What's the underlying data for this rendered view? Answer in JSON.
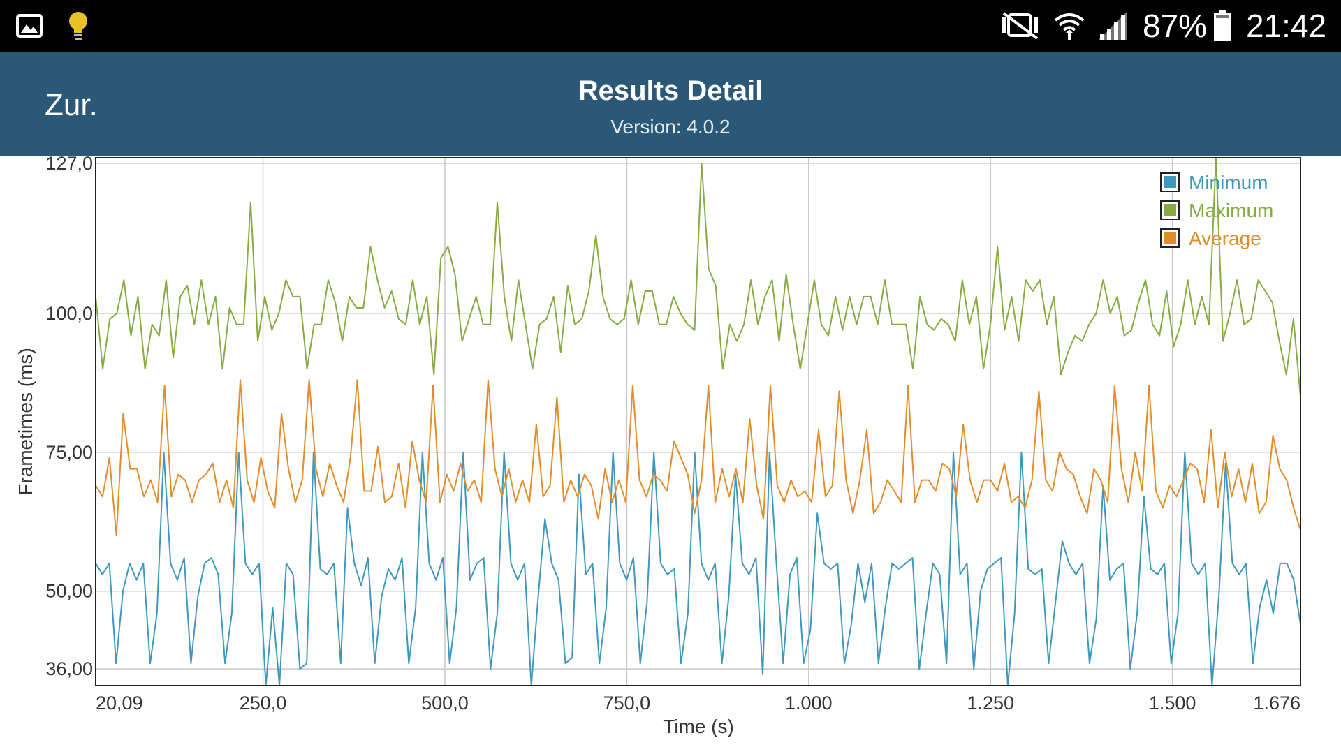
{
  "status_bar": {
    "left_icons": [
      "gallery-icon",
      "lightbulb-icon"
    ],
    "right_icons": [
      "mute-icon",
      "wifi-icon",
      "signal-icon",
      "battery-icon"
    ],
    "battery_percent": "87%",
    "time": "21:42"
  },
  "app_bar": {
    "back_label": "Zur.",
    "title": "Results Detail",
    "subtitle": "Version: 4.0.2",
    "color": "#2b5877"
  },
  "chart_data": {
    "type": "line",
    "xlabel": "Time (s)",
    "ylabel": "Frametimes (ms)",
    "xlim": [
      20.09,
      1676
    ],
    "ylim": [
      33,
      128
    ],
    "x_tick_values": [
      20.09,
      250,
      500,
      750,
      1000,
      1250,
      1500,
      1676
    ],
    "x_tick_labels": [
      "20,09",
      "250,0",
      "500,0",
      "750,0",
      "1.000",
      "1.250",
      "1.500",
      "1.676"
    ],
    "y_tick_values": [
      36,
      50,
      75,
      100,
      127
    ],
    "y_tick_labels": [
      "36,00",
      "50,00",
      "75,00",
      "100,0",
      "127,0"
    ],
    "grid": true,
    "legend_position": "top-right",
    "series": [
      {
        "name": "Minimum",
        "color": "#3e98bd",
        "values": [
          55,
          53,
          55,
          37,
          50,
          55,
          52,
          55,
          37,
          46,
          75,
          55,
          52,
          56,
          37,
          49,
          55,
          56,
          53,
          37,
          46,
          75,
          55,
          53,
          55,
          33,
          47,
          33,
          55,
          53,
          36,
          37,
          75,
          54,
          53,
          55,
          37,
          65,
          55,
          51,
          56,
          37,
          49,
          54,
          52,
          56,
          37,
          47,
          75,
          55,
          52,
          56,
          37,
          47,
          75,
          52,
          55,
          56,
          36,
          46,
          75,
          55,
          52,
          55,
          33,
          49,
          63,
          55,
          52,
          37,
          38,
          71,
          53,
          55,
          37,
          47,
          75,
          55,
          52,
          56,
          37,
          48,
          75,
          55,
          53,
          54,
          37,
          46,
          75,
          55,
          52,
          55,
          37,
          49,
          71,
          55,
          53,
          56,
          35,
          75,
          55,
          37,
          53,
          56,
          37,
          43,
          64,
          55,
          54,
          55,
          37,
          44,
          55,
          48,
          55,
          37,
          47,
          55,
          54,
          55,
          56,
          36,
          46,
          55,
          53,
          37,
          75,
          53,
          55,
          36,
          50,
          54,
          55,
          56,
          33,
          46,
          75,
          54,
          53,
          54,
          37,
          48,
          59,
          55,
          53,
          55,
          37,
          45,
          69,
          52,
          54,
          55,
          36,
          46,
          67,
          54,
          53,
          55,
          37,
          46,
          75,
          55,
          53,
          55,
          33,
          49,
          73,
          55,
          53,
          55,
          37,
          47,
          52,
          46,
          55,
          55,
          52,
          44
        ]
      },
      {
        "name": "Maximum",
        "color": "#86ac41",
        "values": [
          103,
          90,
          99,
          100,
          106,
          96,
          103,
          90,
          98,
          96,
          106,
          92,
          103,
          105,
          98,
          106,
          98,
          103,
          90,
          101,
          98,
          98,
          120,
          95,
          103,
          97,
          100,
          106,
          103,
          103,
          90,
          98,
          98,
          106,
          102,
          95,
          103,
          101,
          101,
          112,
          106,
          101,
          104,
          99,
          98,
          106,
          98,
          103,
          89,
          110,
          112,
          107,
          95,
          99,
          103,
          98,
          98,
          120,
          103,
          95,
          106,
          98,
          90,
          98,
          99,
          103,
          93,
          105,
          98,
          99,
          104,
          114,
          103,
          99,
          98,
          99,
          106,
          98,
          104,
          104,
          98,
          98,
          103,
          100,
          98,
          97,
          127,
          108,
          105,
          90,
          98,
          95,
          98,
          106,
          98,
          103,
          106,
          95,
          107,
          98,
          90,
          98,
          106,
          98,
          96,
          103,
          97,
          103,
          98,
          103,
          103,
          98,
          106,
          98,
          98,
          98,
          90,
          103,
          98,
          97,
          99,
          98,
          95,
          106,
          98,
          103,
          90,
          98,
          112,
          97,
          103,
          95,
          106,
          104,
          106,
          98,
          103,
          89,
          93,
          96,
          95,
          98,
          100,
          106,
          100,
          103,
          96,
          97,
          102,
          106,
          98,
          96,
          104,
          94,
          98,
          106,
          98,
          103,
          98,
          128,
          95,
          100,
          106,
          98,
          99,
          106,
          104,
          102,
          95,
          89,
          99,
          85
        ]
      },
      {
        "name": "Average",
        "color": "#e28c2a",
        "values": [
          69,
          67,
          74,
          60,
          82,
          72,
          72,
          67,
          70,
          66,
          87,
          67,
          71,
          70,
          66,
          70,
          71,
          73,
          66,
          70,
          65,
          88,
          70,
          66,
          74,
          68,
          65,
          82,
          72,
          66,
          70,
          88,
          72,
          67,
          73,
          69,
          66,
          74,
          88,
          68,
          68,
          76,
          66,
          67,
          73,
          65,
          77,
          70,
          66,
          87,
          66,
          71,
          68,
          73,
          68,
          70,
          66,
          88,
          72,
          67,
          72,
          66,
          70,
          66,
          80,
          67,
          69,
          85,
          66,
          70,
          67,
          71,
          69,
          63,
          72,
          66,
          70,
          66,
          87,
          70,
          67,
          71,
          70,
          68,
          77,
          74,
          71,
          64,
          70,
          87,
          66,
          72,
          67,
          72,
          66,
          81,
          69,
          63,
          87,
          69,
          66,
          70,
          67,
          68,
          66,
          79,
          67,
          69,
          86,
          70,
          64,
          70,
          79,
          64,
          66,
          70,
          68,
          66,
          87,
          66,
          70,
          70,
          68,
          73,
          72,
          67,
          80,
          70,
          66,
          70,
          70,
          68,
          73,
          66,
          67,
          65,
          70,
          86,
          70,
          68,
          75,
          72,
          71,
          67,
          64,
          72,
          70,
          66,
          87,
          72,
          66,
          75,
          68,
          87,
          68,
          65,
          69,
          67,
          70,
          73,
          72,
          66,
          79,
          65,
          75,
          67,
          72,
          66,
          73,
          64,
          66,
          78,
          72,
          70,
          65,
          61
        ]
      }
    ]
  }
}
